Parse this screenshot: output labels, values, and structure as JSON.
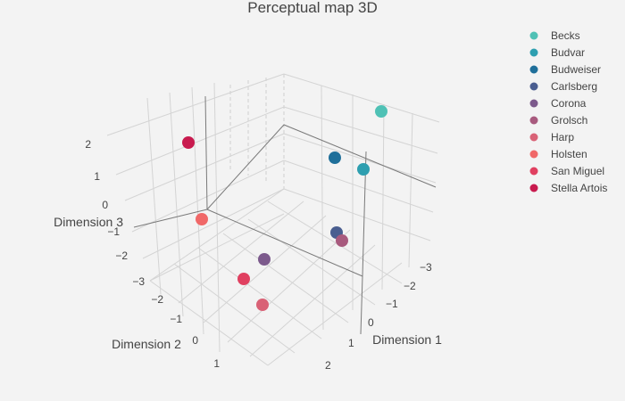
{
  "chart_data": {
    "type": "scatter",
    "title": "Perceptual map 3D",
    "axes": {
      "x": {
        "label": "Dimension 1",
        "ticks": [
          "−3",
          "−2",
          "−1",
          "0",
          "1",
          "2"
        ]
      },
      "y": {
        "label": "Dimension 2",
        "ticks": [
          "−3",
          "−2",
          "−1",
          "0",
          "1"
        ]
      },
      "z": {
        "label": "Dimension 3",
        "ticks": [
          "−3",
          "−2",
          "−1",
          "0",
          "1",
          "2"
        ]
      }
    },
    "legend_position": "top-right",
    "series": [
      {
        "name": "Becks",
        "color": "#4fc1b5"
      },
      {
        "name": "Budvar",
        "color": "#2e9fb0"
      },
      {
        "name": "Budweiser",
        "color": "#1f6f9a"
      },
      {
        "name": "Carlsberg",
        "color": "#4a5e90"
      },
      {
        "name": "Corona",
        "color": "#7c5a8c"
      },
      {
        "name": "Grolsch",
        "color": "#a85a7e"
      },
      {
        "name": "Harp",
        "color": "#d96276"
      },
      {
        "name": "Holsten",
        "color": "#f06868"
      },
      {
        "name": "San Miguel",
        "color": "#e04060"
      },
      {
        "name": "Stella Artois",
        "color": "#c81a4e"
      }
    ]
  }
}
